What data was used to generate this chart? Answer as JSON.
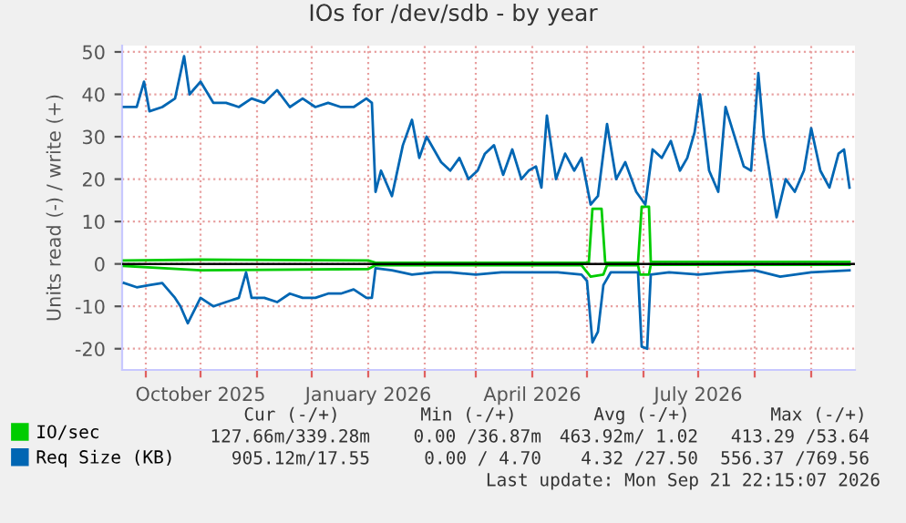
{
  "chart_data": {
    "type": "line",
    "title": "IOs for /dev/sdb - by year",
    "ylabel": "Units read (-) / write (+)",
    "xlim": [
      "2025-08-19",
      "2026-09-25"
    ],
    "ylim": [
      -25,
      51.5
    ],
    "yticks": [
      -20,
      -10,
      0,
      10,
      20,
      30,
      40,
      50
    ],
    "xticks": [
      {
        "value": "2025-09-01",
        "label": null
      },
      {
        "value": "2025-10-01",
        "label": "October 2025"
      },
      {
        "value": "2025-11-01",
        "label": null
      },
      {
        "value": "2025-12-01",
        "label": null
      },
      {
        "value": "2026-01-01",
        "label": "January 2026"
      },
      {
        "value": "2026-02-01",
        "label": null
      },
      {
        "value": "2026-03-01",
        "label": null
      },
      {
        "value": "2026-04-01",
        "label": "April 2026"
      },
      {
        "value": "2026-05-01",
        "label": null
      },
      {
        "value": "2026-06-01",
        "label": null
      },
      {
        "value": "2026-07-01",
        "label": "July 2026"
      },
      {
        "value": "2026-08-01",
        "label": null
      },
      {
        "value": "2026-09-01",
        "label": null
      }
    ],
    "grid": true,
    "legend": "bottom left",
    "line_style": "solid",
    "marker": "none",
    "ref_lines": [
      {
        "axis": "y",
        "value": 0,
        "color": "#000000"
      }
    ],
    "series": [
      {
        "name": "IO/sec",
        "color": "#00cc00",
        "x": [
          "2025-08-20",
          "2025-10-01",
          "2026-01-01",
          "2026-01-05",
          "2026-04-28",
          "2026-05-02",
          "2026-05-04",
          "2026-05-09",
          "2026-05-11",
          "2026-05-29",
          "2026-05-31",
          "2026-06-04",
          "2026-06-05",
          "2026-09-22"
        ],
        "values": [
          0.8,
          1.0,
          0.8,
          0.3,
          0.3,
          0.3,
          13,
          13,
          0.3,
          0.3,
          13.5,
          13.5,
          0.5,
          0.5
        ]
      },
      {
        "color": "#00cc00",
        "x": [
          "2025-08-20",
          "2025-10-01",
          "2026-01-01",
          "2026-01-05",
          "2026-04-28",
          "2026-05-03",
          "2026-05-10",
          "2026-05-12",
          "2026-05-29",
          "2026-05-30",
          "2026-06-04",
          "2026-06-05",
          "2026-09-22"
        ],
        "values": [
          -0.5,
          -1.5,
          -1.2,
          -0.3,
          -0.3,
          -3,
          -2.5,
          -0.3,
          -0.3,
          -2.5,
          -2.5,
          -0.2,
          -0.2
        ]
      },
      {
        "name": "Req Size (KB)",
        "color": "#0066b3",
        "x": [
          "2025-08-20",
          "2025-08-27",
          "2025-08-31",
          "2025-09-03",
          "2025-09-10",
          "2025-09-17",
          "2025-09-22",
          "2025-09-25",
          "2025-10-01",
          "2025-10-08",
          "2025-10-15",
          "2025-10-22",
          "2025-10-29",
          "2025-11-05",
          "2025-11-12",
          "2025-11-19",
          "2025-11-26",
          "2025-12-03",
          "2025-12-10",
          "2025-12-17",
          "2025-12-24",
          "2025-12-31",
          "2026-01-03",
          "2026-01-05",
          "2026-01-08",
          "2026-01-14",
          "2026-01-20",
          "2026-01-25",
          "2026-01-29",
          "2026-02-02",
          "2026-02-06",
          "2026-02-10",
          "2026-02-15",
          "2026-02-20",
          "2026-02-25",
          "2026-03-02",
          "2026-03-06",
          "2026-03-11",
          "2026-03-16",
          "2026-03-21",
          "2026-03-26",
          "2026-03-30",
          "2026-04-03",
          "2026-04-06",
          "2026-04-09",
          "2026-04-14",
          "2026-04-19",
          "2026-04-24",
          "2026-04-28",
          "2026-05-03",
          "2026-05-07",
          "2026-05-12",
          "2026-05-17",
          "2026-05-22",
          "2026-05-28",
          "2026-06-02",
          "2026-06-06",
          "2026-06-11",
          "2026-06-16",
          "2026-06-21",
          "2026-06-25",
          "2026-06-29",
          "2026-07-02",
          "2026-07-07",
          "2026-07-12",
          "2026-07-16",
          "2026-07-21",
          "2026-07-26",
          "2026-07-30",
          "2026-08-03",
          "2026-08-06",
          "2026-08-09",
          "2026-08-13",
          "2026-08-18",
          "2026-08-23",
          "2026-08-28",
          "2026-09-01",
          "2026-09-06",
          "2026-09-11",
          "2026-09-16",
          "2026-09-19",
          "2026-09-22"
        ],
        "values": [
          37,
          37,
          43,
          36,
          37,
          39,
          49,
          40,
          43,
          38,
          38,
          37,
          39,
          38,
          41,
          37,
          39,
          37,
          38,
          37,
          37,
          39,
          38,
          17,
          22,
          16,
          28,
          34,
          25,
          30,
          27,
          24,
          22,
          25,
          20,
          22,
          26,
          28,
          21,
          27,
          20,
          22,
          23,
          18,
          35,
          20,
          26,
          22,
          25,
          14,
          16,
          33,
          20,
          24,
          17,
          14,
          27,
          25,
          29,
          22,
          25,
          31,
          40,
          22,
          17,
          37,
          30,
          23,
          22,
          45,
          30,
          22,
          11,
          20,
          17,
          22,
          32,
          22,
          18,
          26,
          27,
          18
        ]
      },
      {
        "color": "#0066b3",
        "x": [
          "2025-08-20",
          "2025-08-27",
          "2025-09-03",
          "2025-09-10",
          "2025-09-17",
          "2025-09-20",
          "2025-09-24",
          "2025-10-01",
          "2025-10-08",
          "2025-10-15",
          "2025-10-22",
          "2025-10-26",
          "2025-10-29",
          "2025-11-05",
          "2025-11-12",
          "2025-11-19",
          "2025-11-26",
          "2025-12-03",
          "2025-12-10",
          "2025-12-17",
          "2025-12-24",
          "2025-12-31",
          "2026-01-03",
          "2026-01-05",
          "2026-01-14",
          "2026-01-25",
          "2026-02-06",
          "2026-02-15",
          "2026-03-01",
          "2026-03-15",
          "2026-04-01",
          "2026-04-15",
          "2026-04-28",
          "2026-05-01",
          "2026-05-04",
          "2026-05-07",
          "2026-05-10",
          "2026-05-14",
          "2026-05-29",
          "2026-05-31",
          "2026-06-03",
          "2026-06-05",
          "2026-06-15",
          "2026-07-01",
          "2026-07-15",
          "2026-08-01",
          "2026-08-15",
          "2026-09-01",
          "2026-09-22"
        ],
        "values": [
          -4.5,
          -5.5,
          -5,
          -4.5,
          -8,
          -10,
          -14,
          -8,
          -10,
          -9,
          -8,
          -2,
          -8,
          -8,
          -9,
          -7,
          -8,
          -8,
          -7,
          -7,
          -6,
          -8,
          -8,
          -1,
          -1.5,
          -2.5,
          -2,
          -2,
          -2.5,
          -2,
          -2,
          -2,
          -2.5,
          -4,
          -18.5,
          -16,
          -5,
          -2,
          -2,
          -19.5,
          -20,
          -2.5,
          -2,
          -2.5,
          -2,
          -1.5,
          -3,
          -2,
          -1.5
        ]
      }
    ],
    "annotations": [
      "Cur (-/+)",
      "Min (-/+)",
      "Avg (-/+)",
      "Max (-/+)",
      "127.66m/339.28m",
      "0.00 /36.87m",
      "463.92m/ 1.02",
      "413.29 /53.64",
      "905.12m/17.55",
      "0.00 / 4.70",
      "4.32 /27.50",
      "556.37 /769.56",
      "Last update: Mon Sep 21 22:15:07 2026"
    ]
  }
}
